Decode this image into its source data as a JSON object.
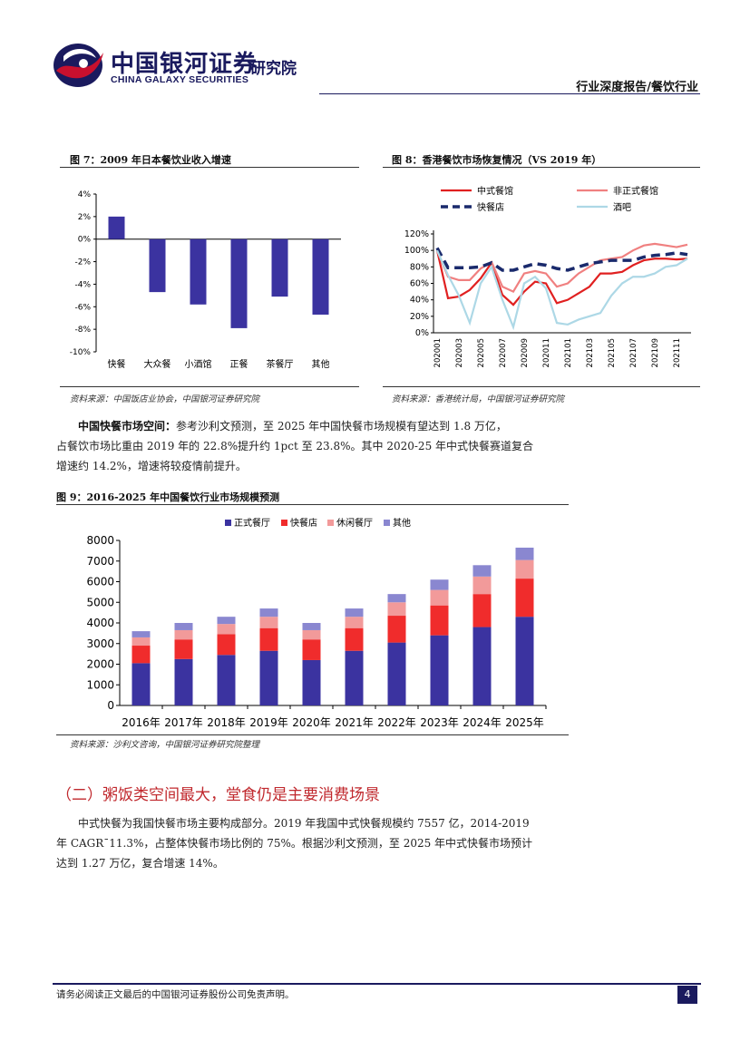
{
  "header": {
    "logo_cn": "中国银河证券",
    "logo_en": "CHINA GALAXY SECURITIES",
    "logo_sub": "研究院",
    "right": "行业深度报告/餐饮行业"
  },
  "fig7": {
    "title": "图 7：2009 年日本餐饮业收入增速",
    "source": "资料来源：中国饭店业协会，中国银河证券研究院"
  },
  "fig8": {
    "title": "图 8：香港餐饮市场恢复情况（VS 2019 年）",
    "source": "资料来源：香港统计局，中国银河证券研究院"
  },
  "para1": {
    "bold": "中国快餐市场空间：",
    "line1": "参考沙利文预测，至 2025 年中国快餐市场规模有望达到 1.8 万亿，",
    "line2": "占餐饮市场比重由 2019 年的 22.8%提升约 1pct 至 23.8%。其中 2020-25 年中式快餐赛道复合",
    "line3": "增速约 14.2%，增速将较疫情前提升。"
  },
  "fig9": {
    "title": "图 9：2016-2025 年中国餐饮行业市场规模预测",
    "source": "资料来源：沙利文咨询，中国银河证券研究院整理"
  },
  "section": {
    "title": "（二）粥饭类空间最大，堂食仍是主要消费场景"
  },
  "para2": {
    "line1": "中式快餐为我国快餐市场主要构成部分。2019 年我国中式快餐规模约 7557 亿，2014-2019",
    "line2": "年 CAGR¯11.3%，占整体快餐市场比例的 75%。根据沙利文预测，至 2025 年中式快餐市场预计",
    "line3": "达到 1.27 万亿，复合增速 14%。"
  },
  "footer": {
    "disclaimer": "请务必阅读正文最后的中国银河证券股份公司免责声明。",
    "page": "4"
  },
  "chart_data": [
    {
      "type": "bar",
      "categories": [
        "快餐",
        "大众餐",
        "小酒馆",
        "正餐",
        "茶餐厅",
        "其他"
      ],
      "values": [
        2.0,
        -4.7,
        -5.8,
        -7.9,
        -5.1,
        -6.7
      ],
      "ylim": [
        -10,
        4
      ],
      "yticks": [
        "4%",
        "2%",
        "0%",
        "-2%",
        "-4%",
        "-6%",
        "-8%",
        "-10%"
      ],
      "color": "#3b33a0"
    },
    {
      "type": "line",
      "x": [
        "202001",
        "202002",
        "202003",
        "202004",
        "202005",
        "202006",
        "202007",
        "202008",
        "202009",
        "202010",
        "202011",
        "202012",
        "202101",
        "202102",
        "202103",
        "202104",
        "202105",
        "202106",
        "202107",
        "202108",
        "202109",
        "202110",
        "202111",
        "202112"
      ],
      "xticks": [
        "202001",
        "202003",
        "202005",
        "202007",
        "202009",
        "202011",
        "202101",
        "202103",
        "202105",
        "202107",
        "202109",
        "202111"
      ],
      "yticks": [
        "120%",
        "100%",
        "80%",
        "60%",
        "40%",
        "20%",
        "0%"
      ],
      "ylim": [
        0,
        120
      ],
      "series": [
        {
          "name": "中式餐馆",
          "color": "#e02020",
          "dash": "",
          "values": [
            100,
            42,
            44,
            52,
            66,
            85,
            46,
            34,
            50,
            62,
            60,
            36,
            40,
            48,
            56,
            72,
            72,
            74,
            82,
            88,
            90,
            90,
            89,
            90
          ]
        },
        {
          "name": "非正式餐馆",
          "color": "#f08080",
          "dash": "",
          "values": [
            100,
            68,
            64,
            64,
            78,
            86,
            56,
            50,
            72,
            75,
            72,
            56,
            60,
            72,
            80,
            88,
            90,
            92,
            100,
            106,
            108,
            106,
            104,
            107
          ]
        },
        {
          "name": "快餐店",
          "color": "#1a2a6c",
          "dash": "10,6",
          "values": [
            103,
            79,
            79,
            79,
            80,
            85,
            76,
            76,
            80,
            84,
            82,
            78,
            76,
            80,
            84,
            86,
            88,
            88,
            88,
            92,
            94,
            95,
            97,
            95
          ]
        },
        {
          "name": "酒吧",
          "color": "#add8e6",
          "dash": "",
          "values": [
            100,
            70,
            45,
            12,
            60,
            80,
            40,
            7,
            60,
            68,
            54,
            12,
            10,
            16,
            20,
            24,
            45,
            60,
            68,
            68,
            72,
            80,
            82,
            90
          ]
        }
      ]
    },
    {
      "type": "bar",
      "stacked": true,
      "categories": [
        "2016年",
        "2017年",
        "2018年",
        "2019年",
        "2020年",
        "2021年",
        "2022年",
        "2023年",
        "2024年",
        "2025年"
      ],
      "ylim": [
        0,
        8000
      ],
      "yticks": [
        "8000",
        "7000",
        "6000",
        "5000",
        "4000",
        "3000",
        "2000",
        "1000",
        "0"
      ],
      "series": [
        {
          "name": "正式餐厅",
          "color": "#3b33a0",
          "values": [
            2050,
            2250,
            2450,
            2650,
            2200,
            2650,
            3050,
            3400,
            3800,
            4300
          ]
        },
        {
          "name": "快餐店",
          "color": "#f02c2c",
          "values": [
            850,
            950,
            1000,
            1100,
            1000,
            1100,
            1300,
            1450,
            1600,
            1850
          ]
        },
        {
          "name": "休闲餐厅",
          "color": "#f29a9a",
          "values": [
            400,
            450,
            500,
            550,
            450,
            550,
            650,
            750,
            850,
            900
          ]
        },
        {
          "name": "其他",
          "color": "#8a87d0",
          "values": [
            300,
            350,
            350,
            400,
            350,
            400,
            400,
            500,
            550,
            600
          ]
        }
      ]
    }
  ]
}
